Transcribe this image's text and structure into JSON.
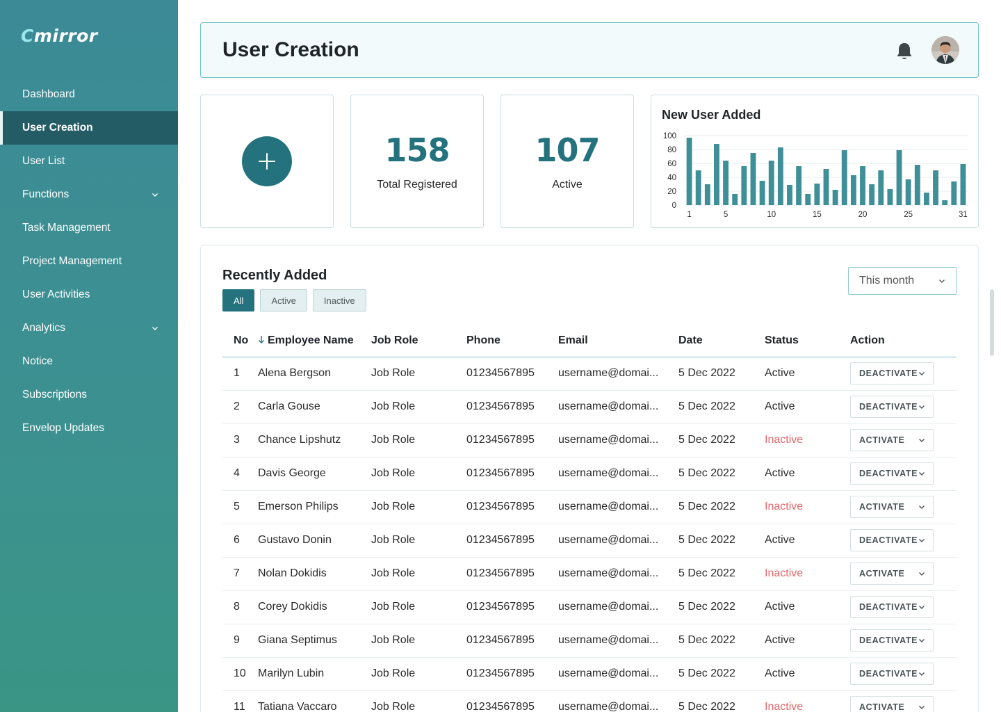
{
  "app": {
    "logo_main": "mirror",
    "logo_mark": "C"
  },
  "sidebar": {
    "items": [
      {
        "label": "Dashboard"
      },
      {
        "label": "User Creation",
        "active": true
      },
      {
        "label": "User List"
      },
      {
        "label": "Functions",
        "has_submenu": true
      },
      {
        "label": "Task Management"
      },
      {
        "label": "Project Management"
      },
      {
        "label": "User Activities"
      },
      {
        "label": "Analytics",
        "has_submenu": true
      },
      {
        "label": "Notice"
      },
      {
        "label": "Subscriptions"
      },
      {
        "label": "Envelop Updates"
      }
    ]
  },
  "header": {
    "title": "User Creation",
    "bell_icon": "bell-icon",
    "avatar_icon": "user-avatar"
  },
  "stats": {
    "total": {
      "value": "158",
      "label": "Total Registered"
    },
    "active": {
      "value": "107",
      "label": "Active"
    }
  },
  "chart": {
    "title": "New User Added"
  },
  "chart_data": {
    "type": "bar",
    "title": "New User Added",
    "x": [
      1,
      2,
      3,
      4,
      5,
      6,
      7,
      8,
      9,
      10,
      11,
      12,
      13,
      14,
      15,
      16,
      17,
      18,
      19,
      20,
      21,
      22,
      23,
      24,
      25,
      26,
      27,
      28,
      29,
      30,
      31
    ],
    "x_ticks": [
      "1",
      "5",
      "10",
      "15",
      "20",
      "25",
      "31"
    ],
    "values": [
      97,
      50,
      30,
      88,
      64,
      16,
      56,
      75,
      35,
      64,
      83,
      29,
      56,
      16,
      31,
      52,
      22,
      79,
      43,
      56,
      30,
      50,
      23,
      79,
      37,
      58,
      18,
      50,
      7,
      34,
      59
    ],
    "ylim": [
      0,
      100
    ],
    "y_ticks": [
      "0",
      "20",
      "40",
      "60",
      "80",
      "100"
    ],
    "grid": true,
    "color": "#3f8f98"
  },
  "recent": {
    "title": "Recently Added",
    "filters": [
      "All",
      "Active",
      "Inactive"
    ],
    "active_filter": "All",
    "period": "This month",
    "columns": [
      "No",
      "Employee Name",
      "Job Role",
      "Phone",
      "Email",
      "Date",
      "Status",
      "Action"
    ],
    "rows": [
      {
        "no": "1",
        "name": "Alena Bergson",
        "role": "Job Role",
        "phone": "01234567895",
        "email": "username@domai...",
        "date": "5 Dec 2022",
        "status": "Active",
        "action": "DEACTIVATE"
      },
      {
        "no": "2",
        "name": "Carla Gouse",
        "role": "Job Role",
        "phone": "01234567895",
        "email": "username@domai...",
        "date": "5 Dec 2022",
        "status": "Active",
        "action": "DEACTIVATE"
      },
      {
        "no": "3",
        "name": "Chance Lipshutz",
        "role": "Job Role",
        "phone": "01234567895",
        "email": "username@domai...",
        "date": "5 Dec 2022",
        "status": "Inactive",
        "action": "ACTIVATE"
      },
      {
        "no": "4",
        "name": "Davis George",
        "role": "Job Role",
        "phone": "01234567895",
        "email": "username@domai...",
        "date": "5 Dec 2022",
        "status": "Active",
        "action": "DEACTIVATE"
      },
      {
        "no": "5",
        "name": "Emerson Philips",
        "role": "Job Role",
        "phone": "01234567895",
        "email": "username@domai...",
        "date": "5 Dec 2022",
        "status": "Inactive",
        "action": "ACTIVATE"
      },
      {
        "no": "6",
        "name": "Gustavo Donin",
        "role": "Job Role",
        "phone": "01234567895",
        "email": "username@domai...",
        "date": "5 Dec 2022",
        "status": "Active",
        "action": "DEACTIVATE"
      },
      {
        "no": "7",
        "name": "Nolan Dokidis",
        "role": "Job Role",
        "phone": "01234567895",
        "email": "username@domai...",
        "date": "5 Dec 2022",
        "status": "Inactive",
        "action": "ACTIVATE"
      },
      {
        "no": "8",
        "name": "Corey Dokidis",
        "role": "Job Role",
        "phone": "01234567895",
        "email": "username@domai...",
        "date": "5 Dec 2022",
        "status": "Active",
        "action": "DEACTIVATE"
      },
      {
        "no": "9",
        "name": "Giana Septimus",
        "role": "Job Role",
        "phone": "01234567895",
        "email": "username@domai...",
        "date": "5 Dec 2022",
        "status": "Active",
        "action": "DEACTIVATE"
      },
      {
        "no": "10",
        "name": "Marilyn Lubin",
        "role": "Job Role",
        "phone": "01234567895",
        "email": "username@domai...",
        "date": "5 Dec 2022",
        "status": "Active",
        "action": "DEACTIVATE"
      },
      {
        "no": "11",
        "name": "Tatiana Vaccaro",
        "role": "Job Role",
        "phone": "01234567895",
        "email": "username@domai...",
        "date": "5 Dec 2022",
        "status": "Inactive",
        "action": "ACTIVATE"
      }
    ]
  },
  "colors": {
    "primary": "#23727d",
    "inactive": "#e5676a",
    "sidebar_active": "#245c66"
  }
}
